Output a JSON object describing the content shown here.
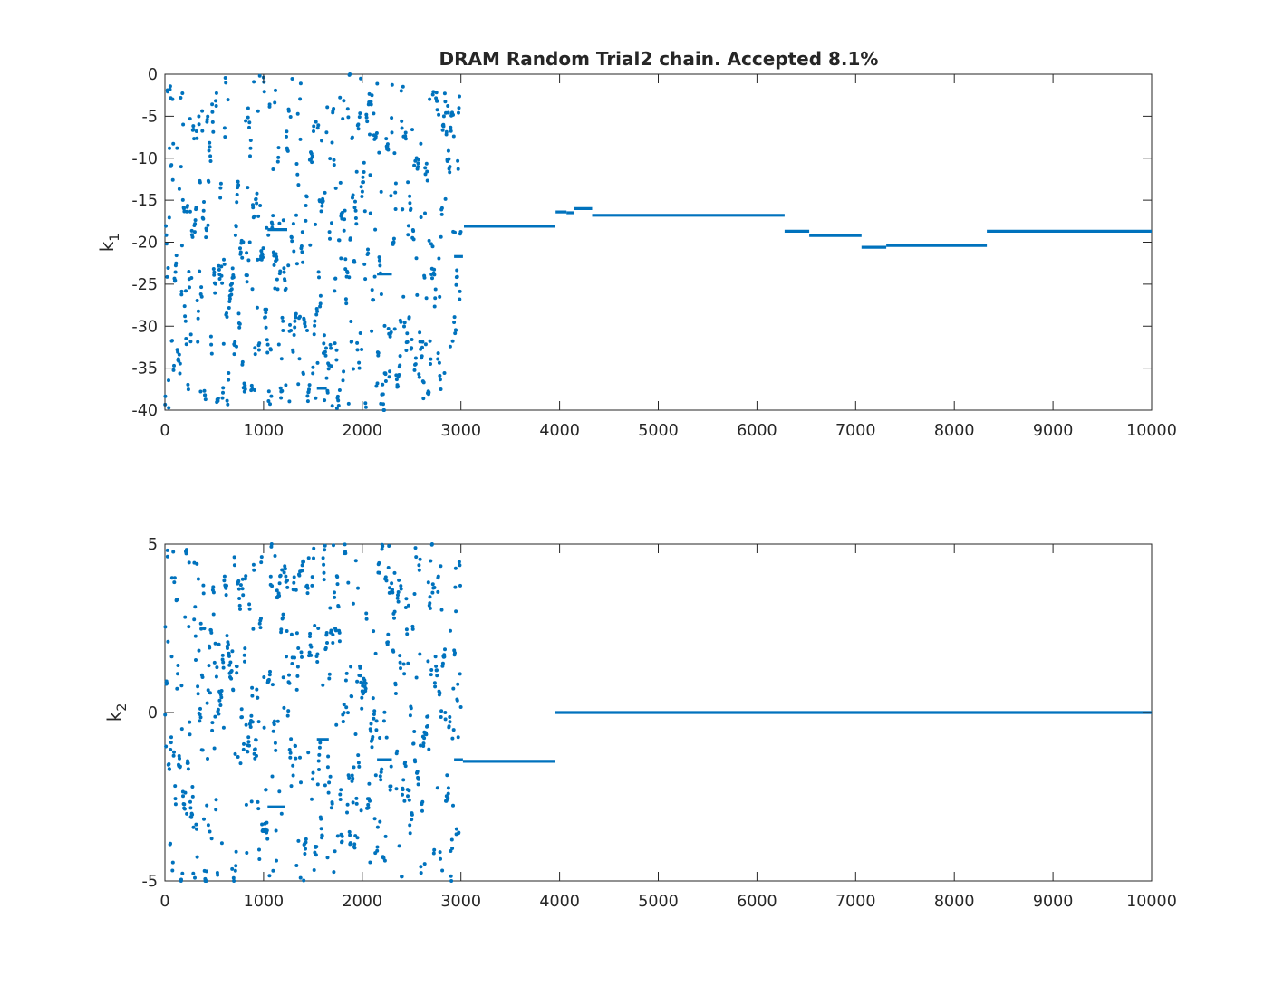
{
  "chart_data": [
    {
      "type": "scatter",
      "title": "DRAM Random Trial2 chain. Accepted 8.1%",
      "xlabel": "",
      "ylabel": "k",
      "ylabel_subscript": "1",
      "xlim": [
        0,
        10000
      ],
      "ylim": [
        -40,
        0
      ],
      "xticks": [
        0,
        1000,
        2000,
        3000,
        4000,
        5000,
        6000,
        7000,
        8000,
        9000,
        10000
      ],
      "yticks": [
        0,
        -5,
        -10,
        -15,
        -20,
        -25,
        -30,
        -35,
        -40
      ],
      "xtick_labels": [
        "0",
        "1000",
        "2000",
        "3000",
        "4000",
        "5000",
        "6000",
        "7000",
        "8000",
        "9000",
        "10000"
      ],
      "ytick_labels": [
        "0",
        "-5",
        "-10",
        "-15",
        "-20",
        "-25",
        "-30",
        "-35",
        "-40"
      ],
      "grid": false,
      "color": "#0072bd",
      "scatter_region": {
        "x": [
          0,
          3000
        ],
        "y": [
          -40,
          0
        ],
        "count": 800
      },
      "plateaus": [
        {
          "x": [
            1040,
            1240
          ],
          "y": -18.5
        },
        {
          "x": [
            1540,
            1640
          ],
          "y": -37.4
        },
        {
          "x": [
            2150,
            2300
          ],
          "y": -23.8
        },
        {
          "x": [
            2930,
            3020
          ],
          "y": -21.7
        },
        {
          "x": [
            3030,
            3950
          ],
          "y": -18.1
        },
        {
          "x": [
            3960,
            4070
          ],
          "y": -16.4
        },
        {
          "x": [
            4070,
            4150
          ],
          "y": -16.5
        },
        {
          "x": [
            4150,
            4330
          ],
          "y": -16.0
        },
        {
          "x": [
            4330,
            6280
          ],
          "y": -16.8
        },
        {
          "x": [
            6280,
            6530
          ],
          "y": -18.7
        },
        {
          "x": [
            6530,
            7060
          ],
          "y": -19.2
        },
        {
          "x": [
            7060,
            7310
          ],
          "y": -20.6
        },
        {
          "x": [
            7310,
            8330
          ],
          "y": -20.4
        },
        {
          "x": [
            8330,
            10000
          ],
          "y": -18.7
        }
      ]
    },
    {
      "type": "scatter",
      "title": "",
      "xlabel": "",
      "ylabel": "k",
      "ylabel_subscript": "2",
      "xlim": [
        0,
        10000
      ],
      "ylim": [
        -5,
        5
      ],
      "xticks": [
        0,
        1000,
        2000,
        3000,
        4000,
        5000,
        6000,
        7000,
        8000,
        9000,
        10000
      ],
      "yticks": [
        5,
        0,
        -5
      ],
      "xtick_labels": [
        "0",
        "1000",
        "2000",
        "3000",
        "4000",
        "5000",
        "6000",
        "7000",
        "8000",
        "9000",
        "10000"
      ],
      "ytick_labels": [
        "5",
        "0",
        "-5"
      ],
      "grid": false,
      "color": "#0072bd",
      "scatter_region": {
        "x": [
          0,
          3000
        ],
        "y": [
          -5,
          5
        ],
        "count": 800
      },
      "plateaus": [
        {
          "x": [
            1040,
            1220
          ],
          "y": -2.8
        },
        {
          "x": [
            1540,
            1660
          ],
          "y": -0.8
        },
        {
          "x": [
            2150,
            2300
          ],
          "y": -1.4
        },
        {
          "x": [
            2930,
            3020
          ],
          "y": -1.4
        },
        {
          "x": [
            3020,
            3950
          ],
          "y": -1.45
        },
        {
          "x": [
            3950,
            10000
          ],
          "y": 0.0
        }
      ]
    }
  ]
}
